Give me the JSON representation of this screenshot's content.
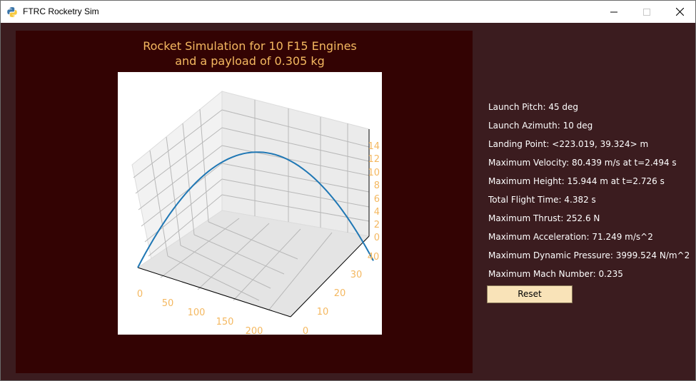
{
  "window": {
    "title": "FTRC Rocketry Sim"
  },
  "plot": {
    "title_line1": "Rocket Simulation for 10 F15 Engines",
    "title_line2": "and a payload of 0.305 kg",
    "title_color": "#f4b860",
    "background": "#330303",
    "line_color": "#1f77b4"
  },
  "chart_data": {
    "type": "line",
    "projection": "3d",
    "title": "Rocket Simulation for 10 F15 Engines and a payload of 0.305 kg",
    "x_ticks": [
      "0",
      "50",
      "100",
      "150",
      "200"
    ],
    "y_ticks": [
      "0",
      "10",
      "20",
      "30",
      "40"
    ],
    "z_ticks": [
      "0",
      "2",
      "4",
      "6",
      "8",
      "10",
      "12",
      "14"
    ],
    "xlim": [
      0,
      223
    ],
    "ylim": [
      0,
      40
    ],
    "zlim": [
      0,
      16
    ],
    "grid": true,
    "series": [
      {
        "x": [
          0,
          22,
          44,
          67,
          89,
          111,
          134,
          156,
          178,
          201,
          223.019
        ],
        "y": [
          0,
          3.9,
          7.9,
          11.8,
          15.7,
          19.7,
          23.6,
          27.5,
          31.5,
          35.4,
          39.324
        ],
        "z": [
          0,
          5.8,
          10.2,
          13.4,
          15.3,
          15.9,
          15.3,
          13.4,
          10.2,
          5.8,
          0
        ]
      }
    ]
  },
  "stats": [
    "Launch Pitch: 45 deg",
    "Launch Azimuth: 10 deg",
    "Landing Point: <223.019, 39.324> m",
    "Maximum Velocity: 80.439 m/s at t=2.494 s",
    "Maximum Height: 15.944 m at t=2.726 s",
    "Total Flight Time: 4.382 s",
    "Maximum Thrust: 252.6 N",
    "Maximum Acceleration: 71.249 m/s^2",
    "Maximum Dynamic Pressure: 3999.524 N/m^2",
    "Maximum Mach Number: 0.235"
  ],
  "reset_label": "Reset",
  "icons": {
    "app": "python-icon",
    "minimize": "minimize-icon",
    "maximize": "maximize-icon",
    "close": "close-icon"
  }
}
